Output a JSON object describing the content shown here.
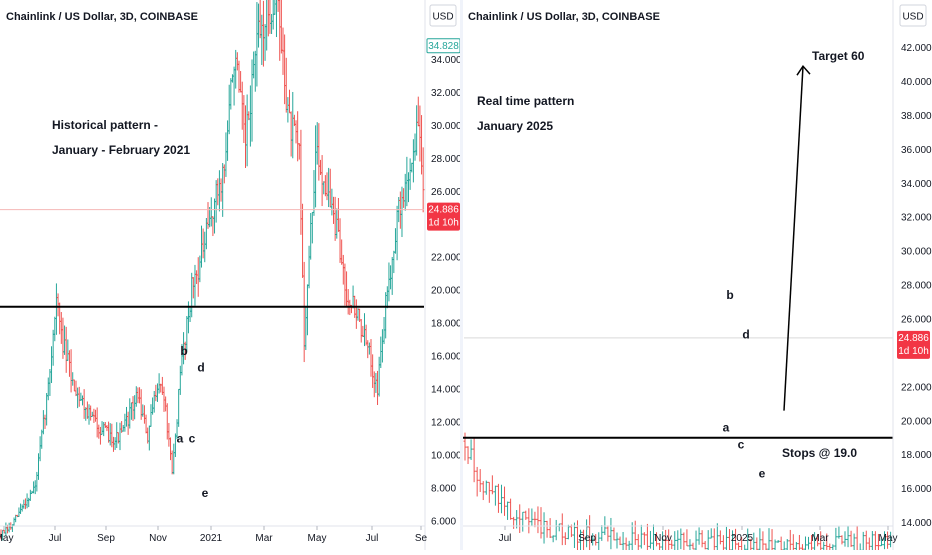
{
  "colors": {
    "up": "#26a69a",
    "down": "#ef5350",
    "hline": "#000000",
    "axis_text": "#131722",
    "axis_border": "#d1d4dc",
    "badge_teal": "#26a69a",
    "badge_red": "#f23645",
    "price_line_left": "#f5b7b6",
    "price_line_right": "#d9d9d9"
  },
  "chart_data": [
    {
      "type": "candlestick",
      "title": "Chainlink / US Dollar, 3D, COINBASE",
      "currency_button": "USD",
      "y_ticks": [
        "6.000",
        "8.000",
        "10.000",
        "12.000",
        "14.000",
        "16.000",
        "18.000",
        "20.000",
        "22.000",
        "24.000",
        "26.000",
        "28.000",
        "30.000",
        "32.000",
        "34.000"
      ],
      "y_range": [
        5.7,
        37.6
      ],
      "x_labels": [
        "May",
        "Jul",
        "Sep",
        "Nov",
        "2021",
        "Mar",
        "May",
        "Jul",
        "Se"
      ],
      "horizontal_line": 19.0,
      "last_price": "24.886",
      "countdown": "1d 10h",
      "high_marker": "34.828",
      "annotations": [
        "Historical pattern -",
        "January - February 2021"
      ],
      "wave_labels": [
        {
          "text": "a",
          "price": 11.0
        },
        {
          "text": "b",
          "price": 16.3
        },
        {
          "text": "c",
          "price": 11.0
        },
        {
          "text": "d",
          "price": 15.3
        },
        {
          "text": "e",
          "price": 7.7
        }
      ],
      "path": [
        [
          0,
          5.2
        ],
        [
          6,
          5.6
        ],
        [
          14,
          7.0
        ],
        [
          21,
          8.1
        ],
        [
          29,
          14.1
        ],
        [
          34,
          19.6
        ],
        [
          37,
          17.2
        ],
        [
          44,
          14.4
        ],
        [
          54,
          12.5
        ],
        [
          62,
          11.5
        ],
        [
          70,
          11.0
        ],
        [
          74,
          11.3
        ],
        [
          84,
          13.7
        ],
        [
          90,
          11.0
        ],
        [
          96,
          14.5
        ],
        [
          100,
          13.6
        ],
        [
          105,
          8.8
        ],
        [
          111,
          15.9
        ],
        [
          117,
          20.1
        ],
        [
          124,
          22.4
        ],
        [
          130,
          24.9
        ],
        [
          137,
          27.4
        ],
        [
          143,
          34.3
        ],
        [
          150,
          28.6
        ],
        [
          156,
          34.5
        ],
        [
          163,
          36.8
        ],
        [
          169,
          37.8
        ],
        [
          177,
          30.0
        ],
        [
          183,
          28.3
        ],
        [
          186,
          17.1
        ],
        [
          193,
          28.1
        ],
        [
          199,
          26.6
        ],
        [
          206,
          23.5
        ],
        [
          212,
          20.0
        ],
        [
          218,
          18.7
        ],
        [
          225,
          16.4
        ],
        [
          231,
          14.1
        ],
        [
          237,
          20.0
        ],
        [
          243,
          24.3
        ],
        [
          249,
          26.5
        ],
        [
          256,
          30.0
        ],
        [
          260,
          24.9
        ]
      ]
    },
    {
      "type": "candlestick",
      "title": "Chainlink / US Dollar, 3D, COINBASE",
      "currency_button": "USD",
      "y_ticks": [
        "14.000",
        "16.000",
        "18.000",
        "20.000",
        "22.000",
        "24.000",
        "26.000",
        "28.000",
        "30.000",
        "32.000",
        "34.000",
        "36.000",
        "38.000",
        "40.000",
        "42.000"
      ],
      "y_range": [
        13.8,
        44.8
      ],
      "x_labels": [
        "Jul",
        "Sep",
        "Nov",
        "2025",
        "Mar",
        "May"
      ],
      "horizontal_line": 19.0,
      "last_price": "24.886",
      "countdown": "1d 10h",
      "annotations": [
        "Real time pattern",
        "January 2025",
        "Target 60",
        "Stops @ 19.0"
      ],
      "wave_labels": [
        {
          "text": "a",
          "price": 19.6
        },
        {
          "text": "b",
          "price": 27.4
        },
        {
          "text": "c",
          "price": 18.6
        },
        {
          "text": "d",
          "price": 25.1
        },
        {
          "text": "e",
          "price": 16.9
        }
      ],
      "target_arrow": {
        "from_price": 20.6,
        "to_price": 40.9,
        "label": "Target 60"
      },
      "path": [
        [
          0,
          18.8
        ],
        [
          5,
          16.2
        ],
        [
          10,
          15.6
        ],
        [
          15,
          14.6
        ],
        [
          20,
          14.2
        ],
        [
          25,
          13.6
        ],
        [
          30,
          13.5
        ],
        [
          35,
          13.3
        ],
        [
          40,
          13.3
        ],
        [
          45,
          13.3
        ],
        [
          50,
          13.2
        ],
        [
          55,
          13.0
        ],
        [
          60,
          13.0
        ],
        [
          65,
          13.0
        ],
        [
          70,
          12.9
        ],
        [
          75,
          12.9
        ],
        [
          80,
          12.9
        ],
        [
          85,
          12.8
        ],
        [
          90,
          12.8
        ],
        [
          95,
          12.7
        ],
        [
          100,
          12.7
        ],
        [
          105,
          12.7
        ],
        [
          110,
          12.7
        ],
        [
          115,
          12.8
        ],
        [
          120,
          12.8
        ],
        [
          125,
          12.8
        ],
        [
          130,
          12.8
        ],
        [
          135,
          12.9
        ],
        [
          140,
          12.9
        ],
        [
          145,
          12.9
        ],
        [
          150,
          12.9
        ],
        [
          155,
          13.0
        ],
        [
          160,
          13.0
        ],
        [
          165,
          13.2
        ],
        [
          170,
          13.5
        ],
        [
          175,
          14.1
        ],
        [
          180,
          15.2
        ],
        [
          184,
          16.6
        ],
        [
          188,
          18.3
        ],
        [
          192,
          19.5
        ],
        [
          196,
          21.2
        ],
        [
          198,
          24.0
        ],
        [
          201,
          27.5
        ],
        [
          205,
          26.7
        ],
        [
          209,
          29.4
        ],
        [
          214,
          25.6
        ],
        [
          220,
          27.5
        ],
        [
          226,
          22.7
        ],
        [
          232,
          24.5
        ],
        [
          238,
          21.1
        ],
        [
          244,
          24.5
        ],
        [
          248,
          20.0
        ],
        [
          252,
          19.3
        ],
        [
          256,
          20.2
        ],
        [
          260,
          23.1
        ],
        [
          264,
          25.5
        ],
        [
          268,
          24.9
        ]
      ]
    }
  ]
}
